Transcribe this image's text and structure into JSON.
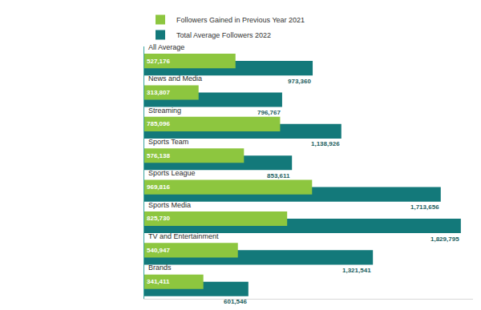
{
  "chart_data": {
    "type": "bar",
    "orientation": "horizontal",
    "categories": [
      "All Average",
      "News and Media",
      "Streaming",
      "Sports Team",
      "Sports League",
      "Sports Media",
      "TV and Entertainment",
      "Brands"
    ],
    "series": [
      {
        "name": "Followers Gained in Previous Year 2021",
        "color": "#8dc63f",
        "values": [
          527176,
          313807,
          785096,
          576138,
          969816,
          825730,
          540947,
          341411
        ],
        "value_labels": [
          "527,176",
          "313,807",
          "785,096",
          "576,138",
          "969,816",
          "825,730",
          "540,947",
          "341,411"
        ]
      },
      {
        "name": "Total Average Followers 2022",
        "color": "#13797a",
        "values": [
          973360,
          796767,
          1138926,
          853611,
          1713656,
          1829795,
          1321541,
          601546
        ],
        "value_labels": [
          "973,360",
          "796,767",
          "1,138,926",
          "853,611",
          "1,713,656",
          "1,829,795",
          "1,321,541",
          "601,546"
        ]
      }
    ],
    "xlim": [
      0,
      1900000
    ],
    "xticks": [],
    "tick_labels": false,
    "data_labels": true,
    "grid": false,
    "legend": "top left"
  }
}
